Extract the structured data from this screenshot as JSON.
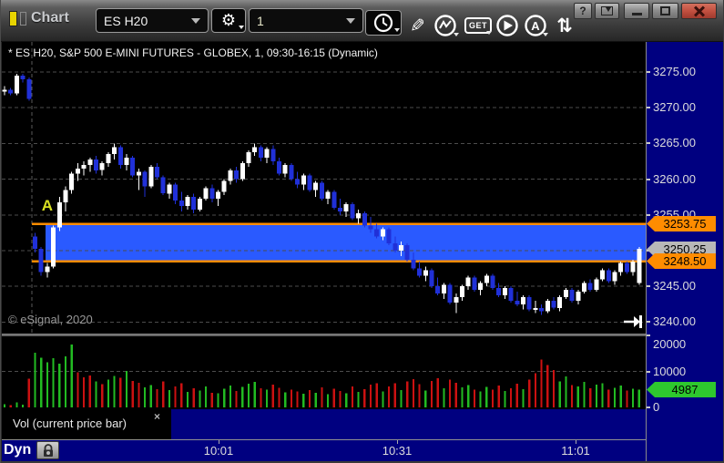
{
  "window": {
    "title": "Chart",
    "buttons": {
      "help": "?"
    }
  },
  "toolbar": {
    "symbol": "ES H20",
    "interval": "1",
    "get_label": "GET",
    "annotate_label": "A",
    "glyphs": {
      "gear": "⚙",
      "pencil": "✎",
      "swap": "⇅"
    },
    "icon_names": [
      "gear-icon",
      "time-interval-icon",
      "pencil-icon",
      "trendline-icon",
      "get-data-icon",
      "play-icon",
      "annotate-icon",
      "refresh-icon"
    ]
  },
  "chart": {
    "heading": "* ES H20, S&P 500 E-MINI FUTURES - GLOBEX, 1, 09:30-16:15 (Dynamic)",
    "watermark": "© eSignal, 2020"
  },
  "indicator_label": "Vol (current price bar)",
  "close_indicator_glyph": "×",
  "mode_label": "Dyn",
  "price_axis": {
    "labels": [
      "3275.00",
      "3270.00",
      "3265.00",
      "3260.00",
      "3255.00",
      "3250.00",
      "3245.00",
      "3240.00"
    ],
    "values": [
      3275,
      3270,
      3265,
      3260,
      3255,
      3250,
      3245,
      3240
    ],
    "flags": [
      {
        "text": "3253.75",
        "value": 3253.75,
        "color": "#ff8c00"
      },
      {
        "text": "3250.25",
        "value": 3250.25,
        "color": "#b8b8b8"
      },
      {
        "text": "3248.50",
        "value": 3248.5,
        "color": "#ff8c00"
      }
    ]
  },
  "volume_axis": {
    "labels": [
      "20000",
      "10000",
      "0"
    ],
    "values": [
      20000,
      10000,
      0
    ],
    "flag": {
      "text": "4987",
      "value": 4987,
      "color": "#2ec82e"
    }
  },
  "time_axis": {
    "ticks": [
      {
        "label": "10:01",
        "x": 238
      },
      {
        "label": "10:31",
        "x": 434
      },
      {
        "label": "11:01",
        "x": 630
      }
    ]
  },
  "colors": {
    "axis_bg": "#000080",
    "candle_up": "#ffffff",
    "candle_down": "#2030d8",
    "zone_fill": "#2a5aff",
    "zone_line": "#ff8c00",
    "vol_up": "#22bb22",
    "vol_down": "#cc1111",
    "grid": "#4c4c4c",
    "annotation": "#d9e021"
  },
  "chart_data": {
    "type": "candlestick",
    "title": "* ES H20, S&P 500 E-MINI FUTURES - GLOBEX, 1, 09:30-16:15 (Dynamic)",
    "interval_minutes": 1,
    "ylim": [
      3238.4,
      3279.2
    ],
    "volume_ylim": [
      0,
      20000
    ],
    "grid": true,
    "session_open_index": 5,
    "session_open_x": 33,
    "last_price": 3250.25,
    "last_volume": 4987,
    "zone": {
      "price_top": 3253.75,
      "price_bottom": 3248.5,
      "rect_start_x": 48,
      "lines_start_x": 33
    },
    "annotations": [
      {
        "type": "text",
        "text": "A",
        "x_index": 7,
        "price": 3256.4
      }
    ],
    "candles": [
      [
        3272.25,
        3273.0,
        3271.75,
        3272.5
      ],
      [
        3272.5,
        3272.75,
        3271.75,
        3272.0
      ],
      [
        3272.0,
        3274.75,
        3271.75,
        3274.5
      ],
      [
        3274.5,
        3274.75,
        3273.5,
        3274.0
      ],
      [
        3274.0,
        3274.25,
        3271.0,
        3271.25
      ],
      [
        3252.0,
        3252.5,
        3249.75,
        3250.25
      ],
      [
        3250.25,
        3250.5,
        3246.5,
        3247.0
      ],
      [
        3247.0,
        3248.25,
        3246.25,
        3247.75
      ],
      [
        3247.75,
        3253.5,
        3247.5,
        3253.25
      ],
      [
        3253.25,
        3257.5,
        3252.75,
        3256.75
      ],
      [
        3256.75,
        3259.0,
        3255.5,
        3258.5
      ],
      [
        3258.5,
        3261.0,
        3258.0,
        3260.75
      ],
      [
        3260.75,
        3262.25,
        3259.75,
        3261.5
      ],
      [
        3261.5,
        3262.5,
        3260.5,
        3262.0
      ],
      [
        3262.0,
        3263.0,
        3261.0,
        3262.75
      ],
      [
        3262.75,
        3263.25,
        3260.75,
        3261.25
      ],
      [
        3261.25,
        3262.5,
        3260.5,
        3262.25
      ],
      [
        3262.25,
        3263.75,
        3261.75,
        3263.5
      ],
      [
        3263.5,
        3265.0,
        3262.75,
        3264.5
      ],
      [
        3264.5,
        3264.75,
        3261.5,
        3262.0
      ],
      [
        3262.0,
        3263.5,
        3261.25,
        3263.0
      ],
      [
        3263.0,
        3263.25,
        3260.25,
        3260.5
      ],
      [
        3260.5,
        3261.5,
        3258.5,
        3261.0
      ],
      [
        3261.0,
        3261.25,
        3257.5,
        3259.0
      ],
      [
        3259.0,
        3262.0,
        3258.75,
        3261.75
      ],
      [
        3261.75,
        3262.25,
        3260.0,
        3260.25
      ],
      [
        3260.25,
        3260.5,
        3257.75,
        3258.0
      ],
      [
        3258.0,
        3259.5,
        3257.25,
        3259.25
      ],
      [
        3259.25,
        3259.5,
        3256.5,
        3257.0
      ],
      [
        3257.0,
        3258.25,
        3255.5,
        3256.25
      ],
      [
        3256.25,
        3257.75,
        3255.75,
        3257.5
      ],
      [
        3257.5,
        3258.0,
        3255.25,
        3255.75
      ],
      [
        3255.75,
        3257.5,
        3255.5,
        3257.25
      ],
      [
        3257.25,
        3259.0,
        3257.0,
        3258.75
      ],
      [
        3258.75,
        3259.25,
        3256.75,
        3257.25
      ],
      [
        3257.25,
        3258.5,
        3256.25,
        3258.25
      ],
      [
        3258.25,
        3260.0,
        3257.75,
        3259.75
      ],
      [
        3259.75,
        3261.5,
        3259.25,
        3261.25
      ],
      [
        3261.25,
        3261.75,
        3259.5,
        3260.0
      ],
      [
        3260.0,
        3262.5,
        3259.75,
        3262.25
      ],
      [
        3262.25,
        3264.0,
        3261.75,
        3263.75
      ],
      [
        3263.75,
        3265.0,
        3263.25,
        3264.5
      ],
      [
        3264.5,
        3264.75,
        3262.5,
        3263.0
      ],
      [
        3263.0,
        3264.5,
        3262.25,
        3264.25
      ],
      [
        3264.25,
        3264.75,
        3262.0,
        3262.5
      ],
      [
        3262.5,
        3263.0,
        3260.5,
        3260.75
      ],
      [
        3260.75,
        3262.25,
        3260.25,
        3262.0
      ],
      [
        3262.0,
        3262.25,
        3259.75,
        3260.0
      ],
      [
        3260.0,
        3261.0,
        3258.75,
        3259.25
      ],
      [
        3259.25,
        3260.75,
        3258.5,
        3260.5
      ],
      [
        3260.5,
        3260.75,
        3258.25,
        3258.5
      ],
      [
        3258.5,
        3259.75,
        3257.5,
        3259.5
      ],
      [
        3259.5,
        3259.75,
        3257.0,
        3257.25
      ],
      [
        3257.25,
        3258.5,
        3256.5,
        3258.25
      ],
      [
        3258.25,
        3258.5,
        3255.75,
        3256.0
      ],
      [
        3256.0,
        3257.25,
        3255.0,
        3255.5
      ],
      [
        3255.5,
        3256.75,
        3254.75,
        3256.5
      ],
      [
        3256.5,
        3256.75,
        3254.25,
        3254.5
      ],
      [
        3254.5,
        3255.75,
        3253.75,
        3255.25
      ],
      [
        3255.25,
        3255.5,
        3253.25,
        3253.5
      ],
      [
        3253.5,
        3254.75,
        3252.5,
        3253.0
      ],
      [
        3253.0,
        3253.75,
        3251.75,
        3252.0
      ],
      [
        3252.0,
        3253.25,
        3251.5,
        3253.0
      ],
      [
        3253.0,
        3253.25,
        3250.75,
        3251.0
      ],
      [
        3251.0,
        3252.0,
        3249.75,
        3250.0
      ],
      [
        3250.0,
        3251.25,
        3249.25,
        3250.75
      ],
      [
        3250.75,
        3251.0,
        3248.5,
        3248.75
      ],
      [
        3248.75,
        3249.75,
        3247.25,
        3247.5
      ],
      [
        3247.5,
        3248.5,
        3246.25,
        3246.5
      ],
      [
        3246.5,
        3247.75,
        3245.75,
        3247.25
      ],
      [
        3247.25,
        3247.5,
        3244.75,
        3245.0
      ],
      [
        3245.0,
        3246.25,
        3243.75,
        3244.0
      ],
      [
        3244.0,
        3245.5,
        3243.25,
        3245.25
      ],
      [
        3245.25,
        3245.5,
        3242.5,
        3242.75
      ],
      [
        3242.75,
        3244.0,
        3241.25,
        3243.5
      ],
      [
        3243.5,
        3245.25,
        3243.0,
        3245.0
      ],
      [
        3245.0,
        3246.5,
        3244.5,
        3246.25
      ],
      [
        3246.25,
        3246.5,
        3244.25,
        3244.5
      ],
      [
        3244.5,
        3245.75,
        3243.75,
        3245.5
      ],
      [
        3245.5,
        3246.75,
        3245.0,
        3246.5
      ],
      [
        3246.5,
        3246.75,
        3244.5,
        3244.75
      ],
      [
        3244.75,
        3245.5,
        3243.5,
        3243.75
      ],
      [
        3243.75,
        3245.0,
        3243.25,
        3244.75
      ],
      [
        3244.75,
        3245.0,
        3242.75,
        3243.0
      ],
      [
        3243.0,
        3244.25,
        3242.25,
        3242.5
      ],
      [
        3242.5,
        3243.75,
        3241.75,
        3243.5
      ],
      [
        3243.5,
        3243.75,
        3241.5,
        3241.75
      ],
      [
        3241.75,
        3243.0,
        3241.25,
        3242.0
      ],
      [
        3242.0,
        3242.5,
        3241.0,
        3241.5
      ],
      [
        3241.5,
        3243.25,
        3241.25,
        3243.0
      ],
      [
        3243.0,
        3243.5,
        3241.75,
        3242.0
      ],
      [
        3242.0,
        3243.75,
        3241.5,
        3243.5
      ],
      [
        3243.5,
        3244.75,
        3243.25,
        3244.5
      ],
      [
        3244.5,
        3244.75,
        3242.75,
        3243.0
      ],
      [
        3243.0,
        3244.5,
        3242.5,
        3244.25
      ],
      [
        3244.25,
        3245.75,
        3244.0,
        3245.5
      ],
      [
        3245.5,
        3246.0,
        3244.25,
        3244.5
      ],
      [
        3244.5,
        3246.25,
        3244.25,
        3246.0
      ],
      [
        3246.0,
        3247.5,
        3245.75,
        3247.25
      ],
      [
        3247.25,
        3247.5,
        3245.5,
        3245.75
      ],
      [
        3245.75,
        3247.25,
        3245.25,
        3247.0
      ],
      [
        3247.0,
        3248.5,
        3246.5,
        3248.25
      ],
      [
        3248.25,
        3248.5,
        3246.75,
        3247.0
      ],
      [
        3247.0,
        3248.75,
        3246.5,
        3248.5
      ],
      [
        3245.5,
        3250.5,
        3245.25,
        3250.25
      ]
    ],
    "volume": [
      [
        900,
        "g"
      ],
      [
        600,
        "r"
      ],
      [
        1400,
        "g"
      ],
      [
        800,
        "g"
      ],
      [
        8000,
        "r"
      ],
      [
        15300,
        "g"
      ],
      [
        13900,
        "g"
      ],
      [
        12600,
        "g"
      ],
      [
        13800,
        "g"
      ],
      [
        12200,
        "g"
      ],
      [
        14300,
        "g"
      ],
      [
        17500,
        "g"
      ],
      [
        9800,
        "r"
      ],
      [
        8400,
        "r"
      ],
      [
        8900,
        "r"
      ],
      [
        7200,
        "g"
      ],
      [
        6500,
        "r"
      ],
      [
        7800,
        "g"
      ],
      [
        8800,
        "g"
      ],
      [
        8300,
        "r"
      ],
      [
        10200,
        "g"
      ],
      [
        7400,
        "r"
      ],
      [
        6900,
        "r"
      ],
      [
        5600,
        "g"
      ],
      [
        6200,
        "g"
      ],
      [
        5100,
        "r"
      ],
      [
        7300,
        "r"
      ],
      [
        4800,
        "g"
      ],
      [
        5900,
        "r"
      ],
      [
        6800,
        "r"
      ],
      [
        4300,
        "g"
      ],
      [
        5400,
        "r"
      ],
      [
        4700,
        "g"
      ],
      [
        5800,
        "g"
      ],
      [
        4100,
        "r"
      ],
      [
        3900,
        "g"
      ],
      [
        5200,
        "g"
      ],
      [
        6100,
        "g"
      ],
      [
        4600,
        "r"
      ],
      [
        5700,
        "g"
      ],
      [
        6600,
        "g"
      ],
      [
        7100,
        "g"
      ],
      [
        5300,
        "r"
      ],
      [
        4900,
        "g"
      ],
      [
        6400,
        "r"
      ],
      [
        5500,
        "r"
      ],
      [
        4200,
        "g"
      ],
      [
        5000,
        "r"
      ],
      [
        4400,
        "r"
      ],
      [
        3800,
        "g"
      ],
      [
        4800,
        "r"
      ],
      [
        4100,
        "g"
      ],
      [
        5600,
        "r"
      ],
      [
        3700,
        "g"
      ],
      [
        5200,
        "r"
      ],
      [
        4600,
        "r"
      ],
      [
        3900,
        "g"
      ],
      [
        5800,
        "r"
      ],
      [
        4300,
        "g"
      ],
      [
        5100,
        "r"
      ],
      [
        6300,
        "r"
      ],
      [
        6800,
        "r"
      ],
      [
        4500,
        "g"
      ],
      [
        5900,
        "r"
      ],
      [
        6700,
        "r"
      ],
      [
        4800,
        "g"
      ],
      [
        7200,
        "r"
      ],
      [
        7900,
        "r"
      ],
      [
        6500,
        "r"
      ],
      [
        4700,
        "g"
      ],
      [
        7400,
        "r"
      ],
      [
        8200,
        "r"
      ],
      [
        5300,
        "g"
      ],
      [
        7700,
        "r"
      ],
      [
        6900,
        "r"
      ],
      [
        5600,
        "g"
      ],
      [
        6200,
        "g"
      ],
      [
        5000,
        "r"
      ],
      [
        4400,
        "g"
      ],
      [
        5700,
        "g"
      ],
      [
        4900,
        "r"
      ],
      [
        6100,
        "r"
      ],
      [
        4600,
        "g"
      ],
      [
        5400,
        "r"
      ],
      [
        6600,
        "r"
      ],
      [
        5100,
        "g"
      ],
      [
        7800,
        "r"
      ],
      [
        9600,
        "r"
      ],
      [
        13400,
        "r"
      ],
      [
        11800,
        "r"
      ],
      [
        10400,
        "r"
      ],
      [
        7300,
        "g"
      ],
      [
        8600,
        "g"
      ],
      [
        6200,
        "r"
      ],
      [
        5800,
        "g"
      ],
      [
        7100,
        "g"
      ],
      [
        5400,
        "r"
      ],
      [
        6300,
        "g"
      ],
      [
        6800,
        "g"
      ],
      [
        4900,
        "r"
      ],
      [
        5500,
        "g"
      ],
      [
        6100,
        "g"
      ],
      [
        4700,
        "r"
      ],
      [
        5200,
        "g"
      ],
      [
        4987,
        "g"
      ]
    ]
  }
}
